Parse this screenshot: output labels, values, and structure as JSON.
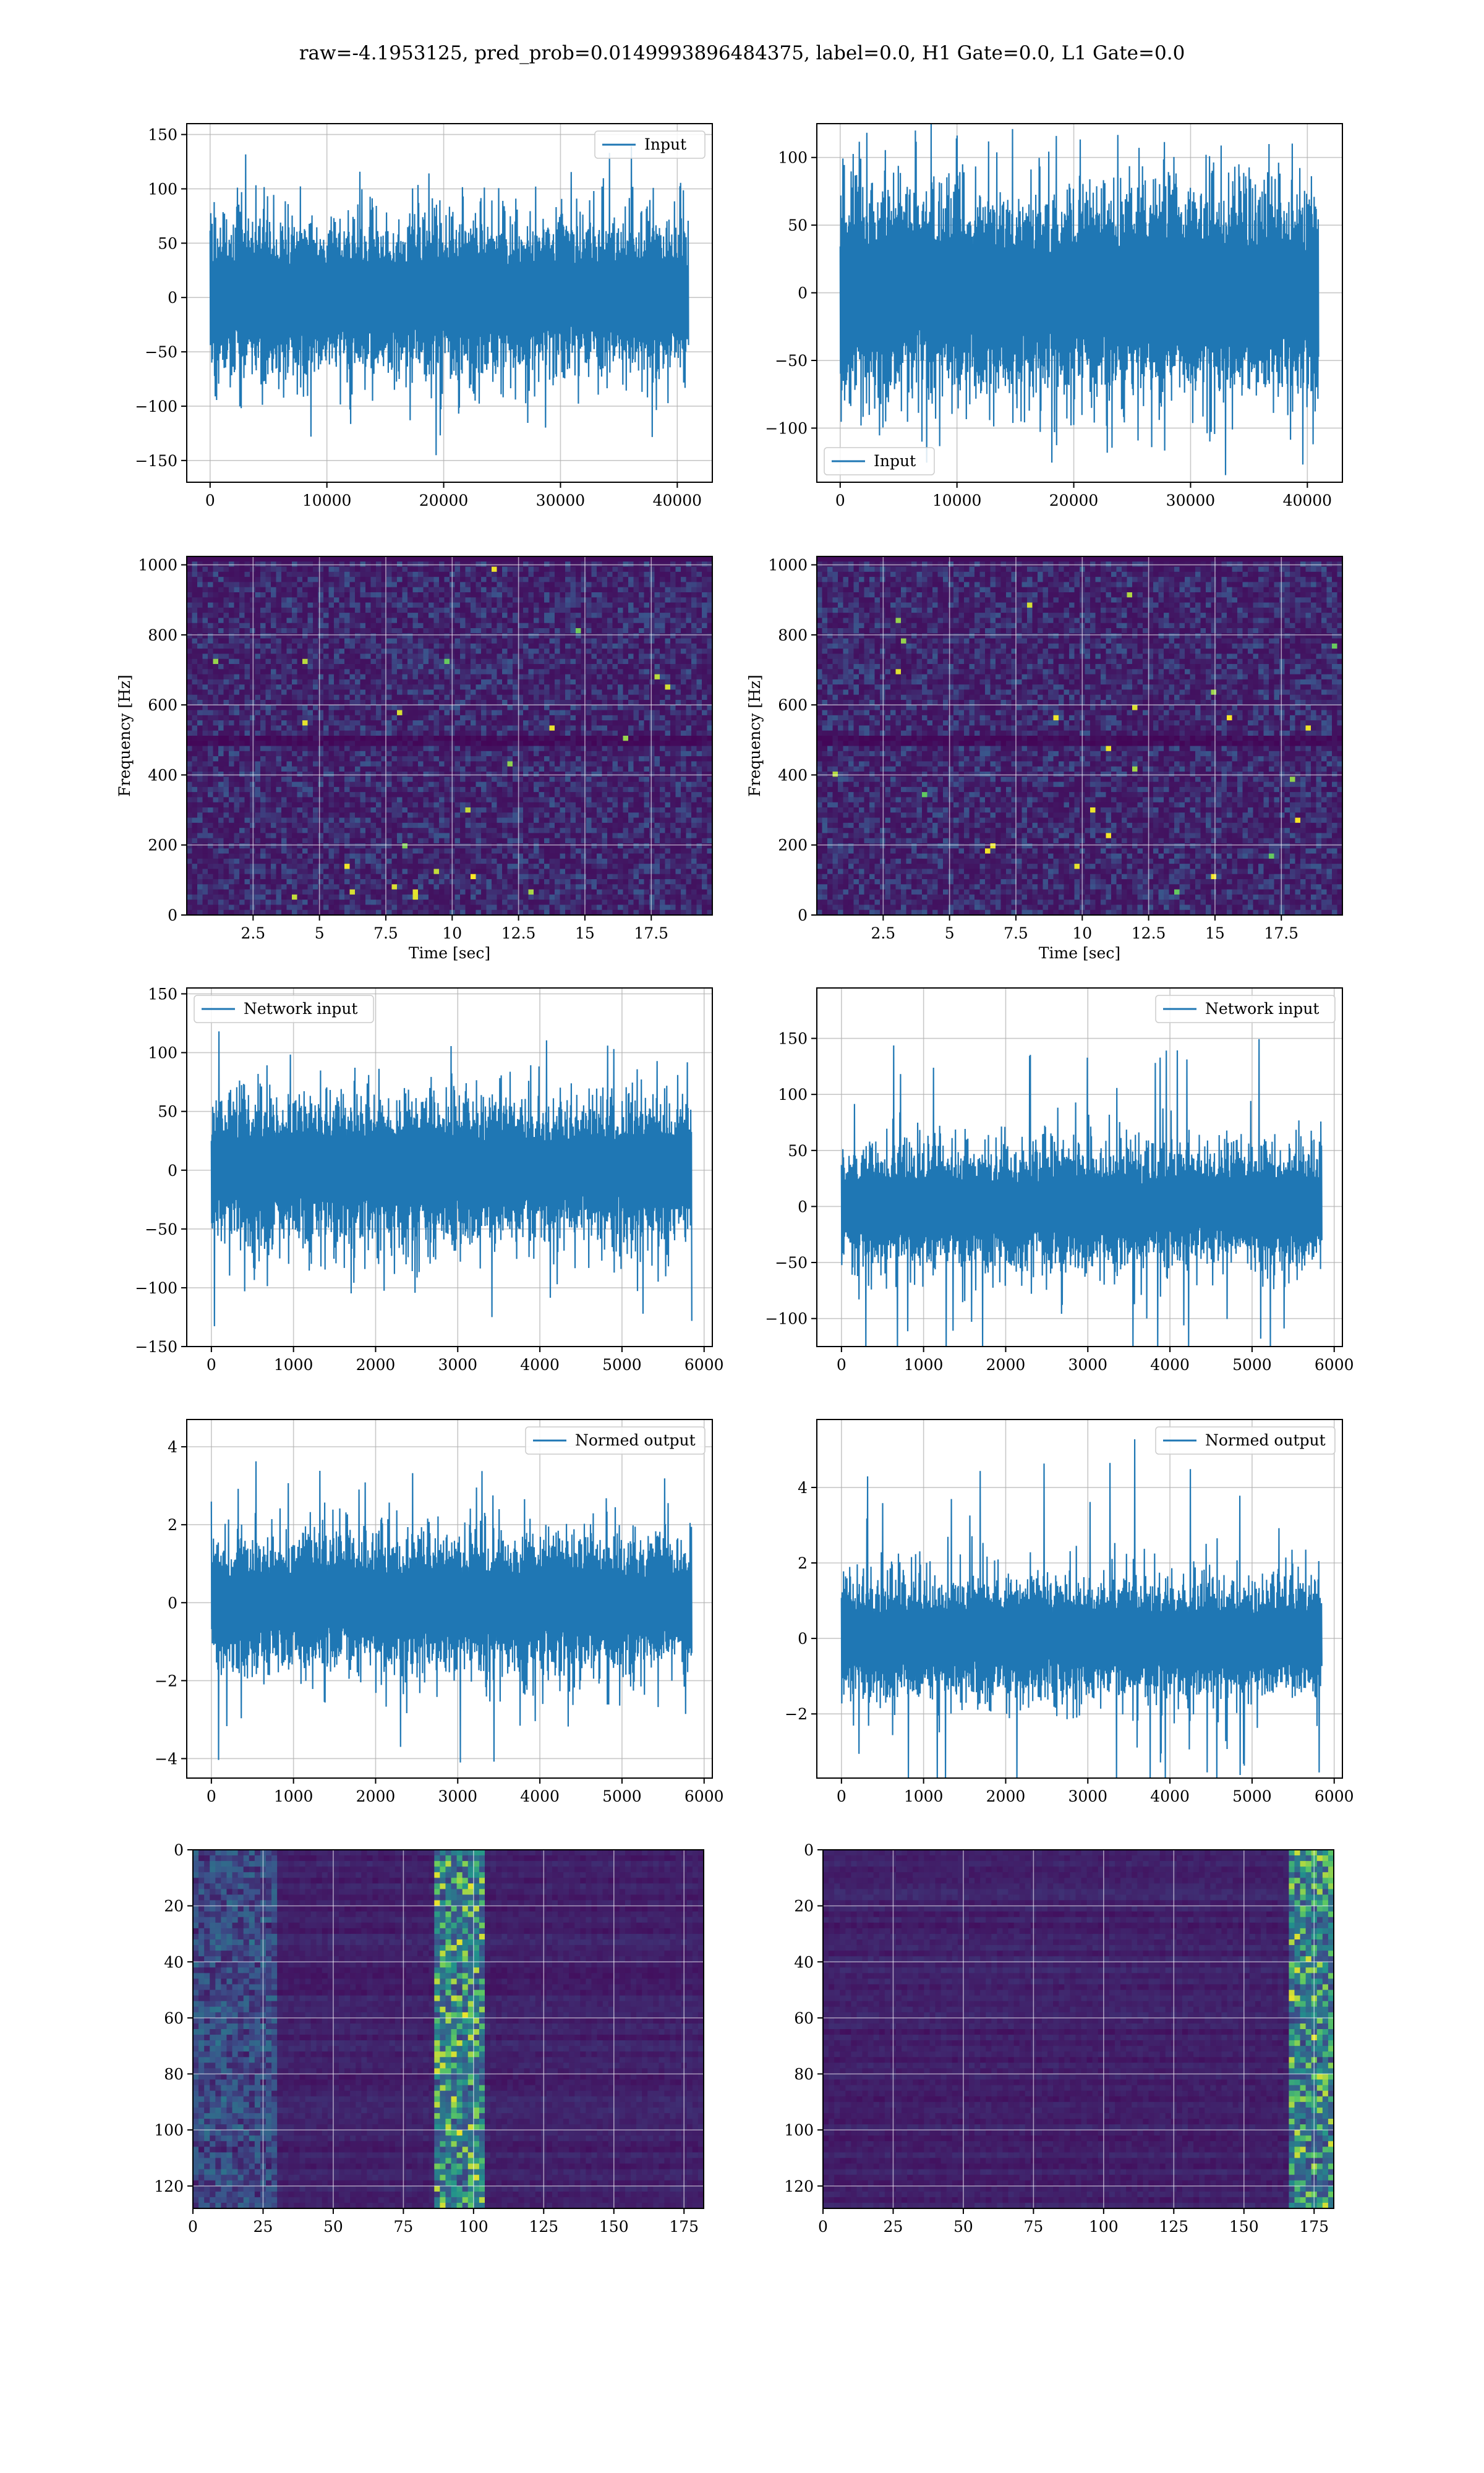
{
  "figure": {
    "title": "raw=-4.1953125, pred_prob=0.0149993896484375, label=0.0, H1 Gate=0.0, L1 Gate=0.0"
  },
  "colors": {
    "line": "#1f77b4",
    "grid": "#b0b0b0",
    "viridis_dark": "#440154",
    "viridis_mid": "#21918c",
    "viridis_bright": "#fde725"
  },
  "chart_data": [
    {
      "id": "input_h1",
      "type": "line",
      "series": [
        {
          "name": "Input"
        }
      ],
      "legend": "upper right",
      "xlim": [
        -2000,
        43000
      ],
      "ylim": [
        -170,
        160
      ],
      "xticks": [
        0,
        10000,
        20000,
        30000,
        40000
      ],
      "yticks": [
        -150,
        -100,
        -50,
        0,
        50,
        100,
        150
      ],
      "n_points": 40960,
      "core_amplitude": 55,
      "peak_amplitude": 150,
      "xlabel": "",
      "ylabel": ""
    },
    {
      "id": "input_l1",
      "type": "line",
      "series": [
        {
          "name": "Input"
        }
      ],
      "legend": "lower left",
      "xlim": [
        -2000,
        43000
      ],
      "ylim": [
        -140,
        125
      ],
      "xticks": [
        0,
        10000,
        20000,
        30000,
        40000
      ],
      "yticks": [
        -100,
        -50,
        0,
        50,
        100
      ],
      "n_points": 40960,
      "core_amplitude": 60,
      "peak_amplitude": 120,
      "xlabel": "",
      "ylabel": ""
    },
    {
      "id": "spectrogram_h1",
      "type": "heatmap",
      "xlim": [
        0,
        19.8
      ],
      "ylim": [
        0,
        1024
      ],
      "xticks": [
        2.5,
        5.0,
        7.5,
        10.0,
        12.5,
        15.0,
        17.5
      ],
      "yticks": [
        0,
        200,
        400,
        600,
        800,
        1000
      ],
      "xlabel": "Time [sec]",
      "ylabel": "Frequency [Hz]",
      "colormap": "viridis"
    },
    {
      "id": "spectrogram_l1",
      "type": "heatmap",
      "xlim": [
        0,
        19.8
      ],
      "ylim": [
        0,
        1024
      ],
      "xticks": [
        2.5,
        5.0,
        7.5,
        10.0,
        12.5,
        15.0,
        17.5
      ],
      "yticks": [
        0,
        200,
        400,
        600,
        800,
        1000
      ],
      "xlabel": "Time [sec]",
      "ylabel": "Frequency [Hz]",
      "colormap": "viridis"
    },
    {
      "id": "network_input_h1",
      "type": "line",
      "series": [
        {
          "name": "Network input"
        }
      ],
      "legend": "upper left",
      "xlim": [
        -300,
        6100
      ],
      "ylim": [
        -150,
        155
      ],
      "xticks": [
        0,
        1000,
        2000,
        3000,
        4000,
        5000,
        6000
      ],
      "yticks": [
        -150,
        -100,
        -50,
        0,
        50,
        100,
        150
      ],
      "n_points": 5850,
      "core_amplitude": 45,
      "peak_amplitude": 140,
      "xlabel": "",
      "ylabel": ""
    },
    {
      "id": "network_input_l1",
      "type": "line",
      "series": [
        {
          "name": "Network input"
        }
      ],
      "legend": "upper right",
      "xlim": [
        -300,
        6100
      ],
      "ylim": [
        -125,
        195
      ],
      "xticks": [
        0,
        1000,
        2000,
        3000,
        4000,
        5000,
        6000
      ],
      "yticks": [
        -100,
        -50,
        0,
        50,
        100,
        150
      ],
      "n_points": 5850,
      "core_amplitude": 40,
      "peak_amplitude": 180,
      "xlabel": "",
      "ylabel": ""
    },
    {
      "id": "normed_output_h1",
      "type": "line",
      "series": [
        {
          "name": "Normed output"
        }
      ],
      "legend": "upper right",
      "xlim": [
        -300,
        6100
      ],
      "ylim": [
        -4.5,
        4.7
      ],
      "xticks": [
        0,
        1000,
        2000,
        3000,
        4000,
        5000,
        6000
      ],
      "yticks": [
        -4,
        -2,
        0,
        2,
        4
      ],
      "n_points": 5850,
      "core_amplitude": 1.3,
      "peak_amplitude": 4.2,
      "xlabel": "",
      "ylabel": ""
    },
    {
      "id": "normed_output_l1",
      "type": "line",
      "series": [
        {
          "name": "Normed output"
        }
      ],
      "legend": "upper right",
      "xlim": [
        -300,
        6100
      ],
      "ylim": [
        -3.7,
        5.8
      ],
      "xticks": [
        0,
        1000,
        2000,
        3000,
        4000,
        5000,
        6000
      ],
      "yticks": [
        -2,
        0,
        2,
        4
      ],
      "n_points": 5850,
      "core_amplitude": 1.2,
      "peak_amplitude": 5.4,
      "xlabel": "",
      "ylabel": ""
    },
    {
      "id": "feature_map_h1",
      "type": "heatmap",
      "xlim": [
        0,
        182
      ],
      "ylim": [
        128,
        0
      ],
      "xticks": [
        0,
        25,
        50,
        75,
        100,
        125,
        150,
        175
      ],
      "yticks": [
        0,
        20,
        40,
        60,
        80,
        100,
        120
      ],
      "colormap": "viridis",
      "hot_columns": [
        90,
        100
      ]
    },
    {
      "id": "feature_map_l1",
      "type": "heatmap",
      "xlim": [
        0,
        182
      ],
      "ylim": [
        128,
        0
      ],
      "xticks": [
        0,
        25,
        50,
        75,
        100,
        125,
        150,
        175
      ],
      "yticks": [
        0,
        20,
        40,
        60,
        80,
        100,
        120
      ],
      "colormap": "viridis",
      "hot_columns": [
        170,
        180
      ]
    }
  ]
}
